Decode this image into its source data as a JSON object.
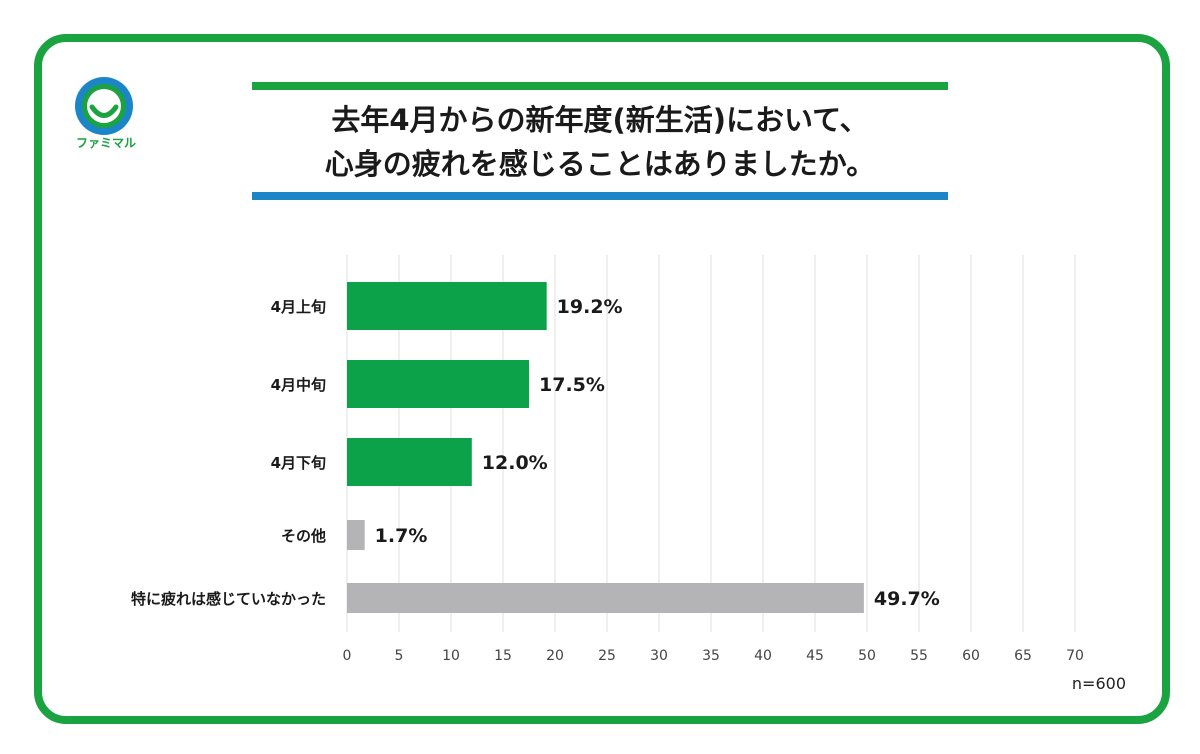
{
  "title": {
    "line1": "去年4月からの新年度(新生活)において、",
    "line2": "心身の疲れを感じることはありましたか。"
  },
  "logo": {
    "text": "ファミマル",
    "icon": "smile-logo-icon",
    "color": "#1aa340"
  },
  "colors": {
    "frame": "#1aa340",
    "title_top_bar": "#1aa340",
    "title_bottom_bar": "#1a86c8",
    "bar_highlight": "#0ba24a",
    "bar_other": "#b4b4b6"
  },
  "sample_size": "n=600",
  "chart_data": {
    "type": "bar",
    "orientation": "horizontal",
    "categories": [
      "4月上旬",
      "4月中旬",
      "4月下旬",
      "その他",
      "特に疲れは感じていなかった"
    ],
    "values": [
      19.2,
      17.5,
      12.0,
      1.7,
      49.7
    ],
    "value_labels": [
      "19.2%",
      "17.5%",
      "12.0%",
      "1.7%",
      "49.7%"
    ],
    "bar_colors": [
      "#0ba24a",
      "#0ba24a",
      "#0ba24a",
      "#b4b4b6",
      "#b4b4b6"
    ],
    "xlim": [
      0,
      70
    ],
    "x_ticks": [
      0,
      5,
      10,
      15,
      20,
      25,
      30,
      35,
      40,
      45,
      50,
      55,
      60,
      65,
      70
    ],
    "grid": true,
    "title": "",
    "xlabel": "",
    "ylabel": ""
  }
}
